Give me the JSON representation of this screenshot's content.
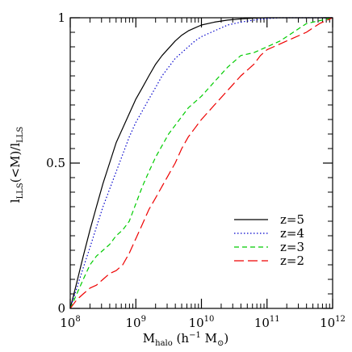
{
  "chart_data": {
    "type": "line",
    "xscale": "log",
    "xlim": [
      100000000,
      1000000000000
    ],
    "ylim": [
      0,
      1
    ],
    "x_ticks": [
      {
        "value": 100000000,
        "base": "10",
        "exp": "8"
      },
      {
        "value": 1000000000,
        "base": "10",
        "exp": "9"
      },
      {
        "value": 10000000000,
        "base": "10",
        "exp": "10"
      },
      {
        "value": 100000000000,
        "base": "10",
        "exp": "11"
      },
      {
        "value": 1000000000000,
        "base": "10",
        "exp": "12"
      }
    ],
    "y_ticks": [
      {
        "value": 0,
        "label": "0"
      },
      {
        "value": 0.5,
        "label": "0.5"
      },
      {
        "value": 1,
        "label": "1"
      }
    ],
    "ylabel": {
      "main": "l",
      "sub1": "LLS",
      "mid": "(<M)/l",
      "sub2": "LLS"
    },
    "xlabel": {
      "main": "M",
      "sub": "halo",
      "rest1": " (h",
      "sup": "−1",
      "rest2": " M",
      "sun": "⊙",
      "rest3": ")"
    },
    "legend_position": "lower-right",
    "series": [
      {
        "name": "z=5",
        "color": "#000000",
        "dash": "",
        "x": [
          100000000,
          126000000,
          158000000,
          200000000,
          251000000,
          316000000,
          398000000,
          501000000,
          631000000,
          794000000,
          1000000000,
          1260000000,
          1580000000,
          2000000000,
          2510000000,
          3160000000,
          3980000000,
          5010000000,
          6310000000,
          7940000000,
          10000000000,
          15800000000,
          25100000000,
          39800000000,
          63100000000,
          100000000000,
          1000000000000
        ],
        "y": [
          0,
          0.09,
          0.18,
          0.27,
          0.35,
          0.43,
          0.5,
          0.57,
          0.62,
          0.67,
          0.72,
          0.76,
          0.8,
          0.84,
          0.87,
          0.895,
          0.92,
          0.94,
          0.955,
          0.965,
          0.975,
          0.985,
          0.992,
          0.996,
          0.999,
          1,
          1
        ]
      },
      {
        "name": "z=4",
        "color": "#0000cc",
        "dash": "1.5 2.5",
        "x": [
          100000000,
          126000000,
          158000000,
          200000000,
          251000000,
          316000000,
          398000000,
          501000000,
          631000000,
          794000000,
          1000000000,
          1260000000,
          1580000000,
          2000000000,
          2510000000,
          3160000000,
          3980000000,
          5010000000,
          6310000000,
          7940000000,
          10000000000,
          15800000000,
          25100000000,
          39800000000,
          63100000000,
          100000000000,
          158000000000,
          1000000000000
        ],
        "y": [
          0,
          0.07,
          0.14,
          0.21,
          0.28,
          0.35,
          0.41,
          0.47,
          0.53,
          0.59,
          0.64,
          0.68,
          0.72,
          0.76,
          0.8,
          0.83,
          0.86,
          0.88,
          0.9,
          0.92,
          0.935,
          0.955,
          0.975,
          0.985,
          0.992,
          0.997,
          1,
          1
        ]
      },
      {
        "name": "z=3",
        "color": "#00cc00",
        "dash": "6 4",
        "x": [
          100000000,
          126000000,
          158000000,
          200000000,
          251000000,
          316000000,
          398000000,
          501000000,
          631000000,
          794000000,
          1000000000,
          1260000000,
          1580000000,
          2000000000,
          2510000000,
          3160000000,
          3980000000,
          5010000000,
          6310000000,
          7940000000,
          10000000000,
          15800000000,
          25100000000,
          39800000000,
          63100000000,
          100000000000,
          158000000000,
          251000000000,
          398000000000,
          1000000000000
        ],
        "y": [
          0,
          0.05,
          0.1,
          0.15,
          0.18,
          0.2,
          0.22,
          0.25,
          0.27,
          0.3,
          0.36,
          0.42,
          0.47,
          0.52,
          0.56,
          0.6,
          0.63,
          0.66,
          0.69,
          0.71,
          0.73,
          0.78,
          0.83,
          0.87,
          0.88,
          0.9,
          0.92,
          0.95,
          0.98,
          1
        ]
      },
      {
        "name": "z=2",
        "color": "#ee0000",
        "dash": "12 5",
        "x": [
          100000000,
          126000000,
          158000000,
          200000000,
          251000000,
          316000000,
          398000000,
          501000000,
          631000000,
          794000000,
          1000000000,
          1260000000,
          1580000000,
          2000000000,
          2510000000,
          3160000000,
          3980000000,
          5010000000,
          6310000000,
          7940000000,
          10000000000,
          15800000000,
          25100000000,
          39800000000,
          63100000000,
          79400000000,
          100000000000,
          158000000000,
          251000000000,
          398000000000,
          631000000000,
          1000000000000
        ],
        "y": [
          0,
          0.03,
          0.05,
          0.07,
          0.08,
          0.1,
          0.12,
          0.13,
          0.15,
          0.19,
          0.24,
          0.29,
          0.34,
          0.38,
          0.42,
          0.46,
          0.5,
          0.55,
          0.59,
          0.62,
          0.65,
          0.7,
          0.75,
          0.8,
          0.84,
          0.87,
          0.89,
          0.91,
          0.93,
          0.95,
          0.98,
          1
        ]
      }
    ]
  }
}
